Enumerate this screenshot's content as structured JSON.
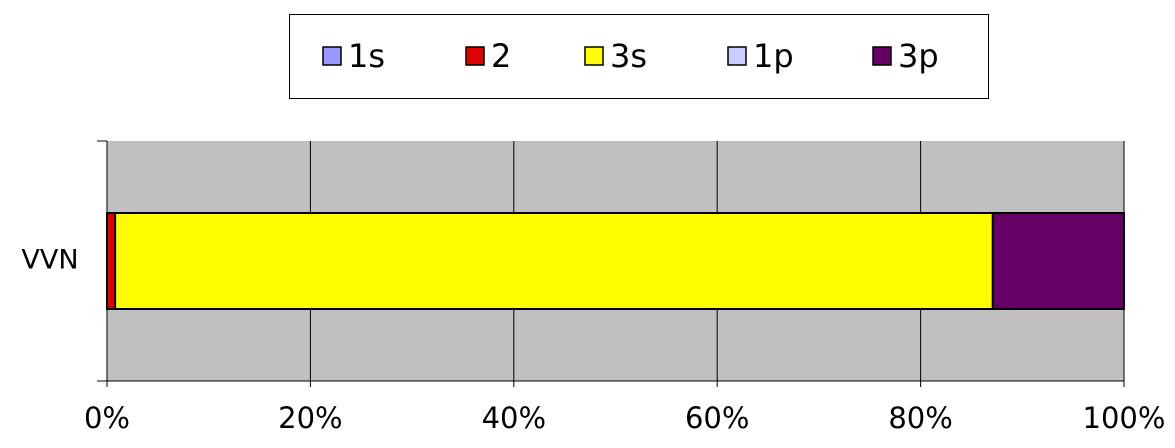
{
  "chart_data": {
    "type": "stacked-bar-horizontal",
    "categories": [
      "VVN"
    ],
    "series": [
      {
        "name": "1s",
        "color": "#9999ff",
        "values": [
          0
        ]
      },
      {
        "name": "2",
        "color": "#e00000",
        "values": [
          0.8
        ]
      },
      {
        "name": "3s",
        "color": "#ffff00",
        "values": [
          86.3
        ]
      },
      {
        "name": "1p",
        "color": "#ccccff",
        "values": [
          0
        ]
      },
      {
        "name": "3p",
        "color": "#660066",
        "values": [
          12.9
        ]
      }
    ],
    "xlim": [
      0,
      100
    ],
    "xticks": [
      {
        "value": 0,
        "label": "0%"
      },
      {
        "value": 20,
        "label": "20%"
      },
      {
        "value": 40,
        "label": "40%"
      },
      {
        "value": 60,
        "label": "60%"
      },
      {
        "value": 80,
        "label": "80%"
      },
      {
        "value": 100,
        "label": "100%"
      }
    ],
    "grid": true,
    "legend": "top"
  }
}
